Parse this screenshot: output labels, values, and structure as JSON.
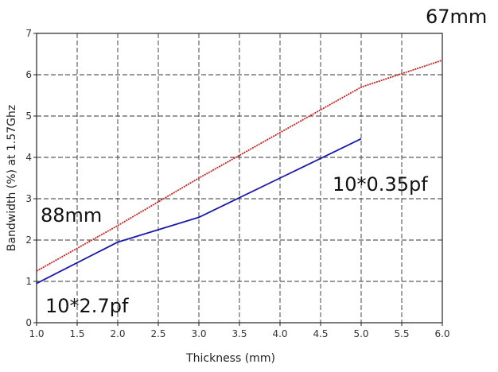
{
  "chart_data": {
    "type": "line",
    "xlabel": "Thickness (mm)",
    "ylabel": "Bandwidth (%) at 1.57Ghz",
    "xlim": [
      1.0,
      6.0
    ],
    "ylim": [
      0,
      7
    ],
    "xticks": [
      "1.0",
      "1.5",
      "2.0",
      "2.5",
      "3.0",
      "3.5",
      "4.0",
      "4.5",
      "5.0",
      "5.5",
      "6.0"
    ],
    "yticks": [
      "0",
      "1",
      "2",
      "3",
      "4",
      "5",
      "6",
      "7"
    ],
    "grid": true,
    "series": [
      {
        "color": "#cc2222",
        "x": [
          1.0,
          2.0,
          3.0,
          4.0,
          5.0,
          6.0
        ],
        "y": [
          1.25,
          2.35,
          3.5,
          4.6,
          5.7,
          6.35
        ]
      },
      {
        "color": "#1a1aaa",
        "x": [
          1.0,
          2.0,
          3.0,
          4.0,
          5.0
        ],
        "y": [
          0.95,
          1.95,
          2.55,
          3.5,
          4.45
        ]
      }
    ],
    "annotations": [
      "67mm",
      "10*0.35pf",
      "88mm",
      "10*2.7pf"
    ]
  }
}
